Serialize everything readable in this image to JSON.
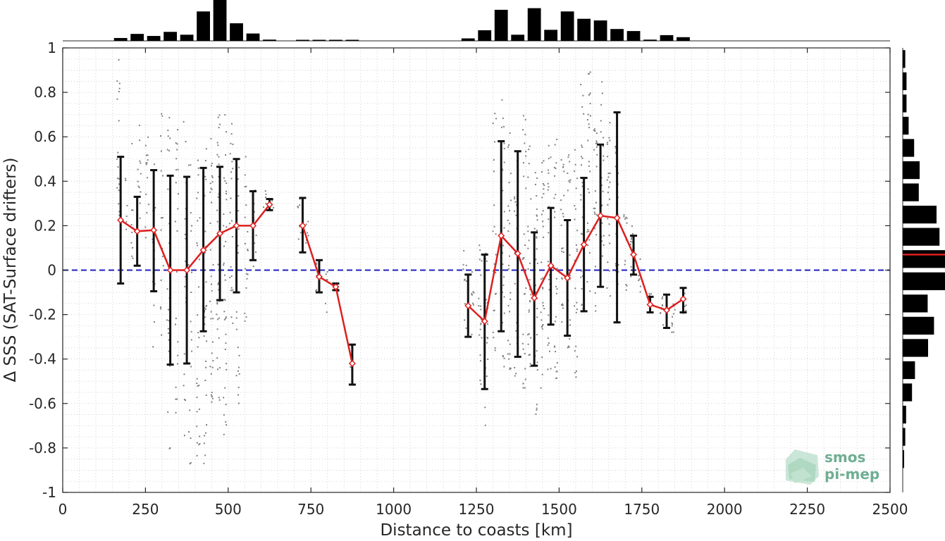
{
  "chart_data": {
    "type": "line",
    "xlabel": "Distance to coasts [km]",
    "ylabel": "Δ SSS (SAT-Surface drifters)",
    "xlim": [
      0,
      2500
    ],
    "ylim": [
      -1,
      1
    ],
    "xticks": [
      0,
      250,
      500,
      750,
      1000,
      1250,
      1500,
      1750,
      2000,
      2250,
      2500
    ],
    "yticks": [
      -1,
      -0.8,
      -0.6,
      -0.4,
      -0.2,
      0,
      0.2,
      0.4,
      0.6,
      0.8,
      1
    ],
    "xtick_labels": [
      "0",
      "250",
      "500",
      "750",
      "1000",
      "1250",
      "1500",
      "1750",
      "2000",
      "2250",
      "2500"
    ],
    "ytick_labels": [
      "-1",
      "-0.8",
      "-0.6",
      "-0.4",
      "-0.2",
      "0",
      "0.2",
      "0.4",
      "0.6",
      "0.8",
      "1"
    ],
    "grid": true,
    "reference_line": {
      "y": 0,
      "style": "dashed",
      "color": "#1f1fbf"
    },
    "series": [
      {
        "style": "mean-with-std-errorbars",
        "line_color": "#dd1f1f",
        "errorbar_color": "#111111",
        "segments": [
          [
            {
              "x": 175,
              "y": 0.225,
              "lo": -0.06,
              "hi": 0.51
            },
            {
              "x": 225,
              "y": 0.175,
              "lo": 0.02,
              "hi": 0.33
            },
            {
              "x": 275,
              "y": 0.18,
              "lo": -0.095,
              "hi": 0.45
            },
            {
              "x": 325,
              "y": 0.0,
              "lo": -0.425,
              "hi": 0.425
            },
            {
              "x": 375,
              "y": 0.0,
              "lo": -0.42,
              "hi": 0.42
            },
            {
              "x": 425,
              "y": 0.09,
              "lo": -0.275,
              "hi": 0.46
            },
            {
              "x": 475,
              "y": 0.165,
              "lo": -0.135,
              "hi": 0.465
            },
            {
              "x": 525,
              "y": 0.2,
              "lo": -0.1,
              "hi": 0.5
            },
            {
              "x": 575,
              "y": 0.2,
              "lo": 0.045,
              "hi": 0.355
            },
            {
              "x": 625,
              "y": 0.295,
              "lo": 0.27,
              "hi": 0.32
            }
          ],
          [
            {
              "x": 725,
              "y": 0.2,
              "lo": 0.08,
              "hi": 0.325
            },
            {
              "x": 775,
              "y": -0.03,
              "lo": -0.1,
              "hi": 0.045
            },
            {
              "x": 825,
              "y": -0.075,
              "lo": -0.09,
              "hi": -0.06
            },
            {
              "x": 875,
              "y": -0.42,
              "lo": -0.515,
              "hi": -0.335
            }
          ],
          [
            {
              "x": 1225,
              "y": -0.16,
              "lo": -0.3,
              "hi": -0.02
            },
            {
              "x": 1275,
              "y": -0.23,
              "lo": -0.535,
              "hi": 0.07
            },
            {
              "x": 1325,
              "y": 0.155,
              "lo": -0.275,
              "hi": 0.58
            },
            {
              "x": 1375,
              "y": 0.075,
              "lo": -0.39,
              "hi": 0.535
            },
            {
              "x": 1425,
              "y": -0.125,
              "lo": -0.43,
              "hi": 0.17
            },
            {
              "x": 1475,
              "y": 0.02,
              "lo": -0.245,
              "hi": 0.28
            },
            {
              "x": 1525,
              "y": -0.035,
              "lo": -0.295,
              "hi": 0.225
            },
            {
              "x": 1575,
              "y": 0.115,
              "lo": -0.185,
              "hi": 0.415
            },
            {
              "x": 1625,
              "y": 0.245,
              "lo": -0.075,
              "hi": 0.565
            },
            {
              "x": 1675,
              "y": 0.235,
              "lo": -0.235,
              "hi": 0.71
            },
            {
              "x": 1725,
              "y": 0.07,
              "lo": -0.02,
              "hi": 0.155
            },
            {
              "x": 1775,
              "y": -0.155,
              "lo": -0.19,
              "hi": -0.12
            },
            {
              "x": 1825,
              "y": -0.18,
              "lo": -0.26,
              "hi": -0.11
            },
            {
              "x": 1875,
              "y": -0.13,
              "lo": -0.19,
              "hi": -0.08
            }
          ]
        ]
      }
    ],
    "scatter_clusters": [
      {
        "x": 168,
        "ymin": 0.1,
        "ymax": 0.95,
        "n": 18
      },
      {
        "x": 190,
        "ymin": 0.15,
        "ymax": 0.45,
        "n": 6
      },
      {
        "x": 210,
        "ymin": 0.05,
        "ymax": 0.6,
        "n": 10
      },
      {
        "x": 232,
        "ymin": 0.05,
        "ymax": 0.68,
        "n": 12
      },
      {
        "x": 255,
        "ymin": 0.0,
        "ymax": 0.6,
        "n": 14
      },
      {
        "x": 275,
        "ymin": -0.35,
        "ymax": 0.55,
        "n": 18
      },
      {
        "x": 300,
        "ymin": -0.3,
        "ymax": 0.72,
        "n": 16
      },
      {
        "x": 320,
        "ymin": -0.85,
        "ymax": 0.7,
        "n": 22
      },
      {
        "x": 345,
        "ymin": -0.7,
        "ymax": 0.7,
        "n": 22
      },
      {
        "x": 370,
        "ymin": -0.75,
        "ymax": 0.68,
        "n": 20
      },
      {
        "x": 385,
        "ymin": -0.95,
        "ymax": 0.5,
        "n": 18
      },
      {
        "x": 410,
        "ymin": -0.9,
        "ymax": 0.55,
        "n": 28
      },
      {
        "x": 430,
        "ymin": -0.88,
        "ymax": 0.6,
        "n": 34
      },
      {
        "x": 450,
        "ymin": -0.6,
        "ymax": 0.62,
        "n": 34
      },
      {
        "x": 470,
        "ymin": -0.6,
        "ymax": 0.7,
        "n": 36
      },
      {
        "x": 490,
        "ymin": -0.78,
        "ymax": 0.75,
        "n": 36
      },
      {
        "x": 510,
        "ymin": -0.25,
        "ymax": 0.72,
        "n": 24
      },
      {
        "x": 530,
        "ymin": -0.6,
        "ymax": 0.6,
        "n": 24
      },
      {
        "x": 555,
        "ymin": -0.25,
        "ymax": 0.6,
        "n": 18
      },
      {
        "x": 580,
        "ymin": 0.0,
        "ymax": 0.4,
        "n": 10
      },
      {
        "x": 610,
        "ymin": 0.27,
        "ymax": 0.36,
        "n": 5
      },
      {
        "x": 635,
        "ymin": 0.28,
        "ymax": 0.33,
        "n": 3
      },
      {
        "x": 715,
        "ymin": 0.1,
        "ymax": 0.34,
        "n": 8
      },
      {
        "x": 740,
        "ymin": 0.1,
        "ymax": 0.3,
        "n": 6
      },
      {
        "x": 770,
        "ymin": -0.1,
        "ymax": 0.05,
        "n": 6
      },
      {
        "x": 795,
        "ymin": -0.2,
        "ymax": 0.0,
        "n": 6
      },
      {
        "x": 830,
        "ymin": -0.1,
        "ymax": -0.05,
        "n": 4
      },
      {
        "x": 870,
        "ymin": -0.5,
        "ymax": -0.33,
        "n": 5
      },
      {
        "x": 1215,
        "ymin": -0.3,
        "ymax": 0.1,
        "n": 10
      },
      {
        "x": 1240,
        "ymin": -0.3,
        "ymax": 0.0,
        "n": 8
      },
      {
        "x": 1262,
        "ymin": -0.55,
        "ymax": 0.15,
        "n": 20
      },
      {
        "x": 1280,
        "ymin": -0.7,
        "ymax": 0.2,
        "n": 22
      },
      {
        "x": 1305,
        "ymin": -0.45,
        "ymax": 0.75,
        "n": 22
      },
      {
        "x": 1330,
        "ymin": -0.5,
        "ymax": 0.82,
        "n": 30
      },
      {
        "x": 1350,
        "ymin": -0.45,
        "ymax": 0.65,
        "n": 26
      },
      {
        "x": 1370,
        "ymin": -0.5,
        "ymax": 0.55,
        "n": 24
      },
      {
        "x": 1395,
        "ymin": -0.55,
        "ymax": 0.7,
        "n": 30
      },
      {
        "x": 1410,
        "ymin": -0.5,
        "ymax": 0.6,
        "n": 26
      },
      {
        "x": 1430,
        "ymin": -0.65,
        "ymax": 0.55,
        "n": 30
      },
      {
        "x": 1450,
        "ymin": -0.55,
        "ymax": 0.6,
        "n": 30
      },
      {
        "x": 1470,
        "ymin": -0.45,
        "ymax": 0.65,
        "n": 28
      },
      {
        "x": 1490,
        "ymin": -0.5,
        "ymax": 0.6,
        "n": 26
      },
      {
        "x": 1510,
        "ymin": -0.25,
        "ymax": 0.5,
        "n": 22
      },
      {
        "x": 1530,
        "ymin": -0.35,
        "ymax": 0.55,
        "n": 24
      },
      {
        "x": 1550,
        "ymin": -0.5,
        "ymax": 0.6,
        "n": 24
      },
      {
        "x": 1570,
        "ymin": -0.2,
        "ymax": 0.85,
        "n": 26
      },
      {
        "x": 1590,
        "ymin": -0.15,
        "ymax": 0.95,
        "n": 28
      },
      {
        "x": 1610,
        "ymin": -0.2,
        "ymax": 0.75,
        "n": 24
      },
      {
        "x": 1630,
        "ymin": -0.1,
        "ymax": 0.85,
        "n": 26
      },
      {
        "x": 1650,
        "ymin": -0.2,
        "ymax": 0.7,
        "n": 24
      },
      {
        "x": 1675,
        "ymin": -0.1,
        "ymax": 0.95,
        "n": 22
      },
      {
        "x": 1700,
        "ymin": -0.1,
        "ymax": 0.3,
        "n": 12
      },
      {
        "x": 1720,
        "ymin": -0.05,
        "ymax": 0.2,
        "n": 10
      },
      {
        "x": 1745,
        "ymin": -0.1,
        "ymax": 0.05,
        "n": 6
      },
      {
        "x": 1775,
        "ymin": -0.2,
        "ymax": -0.1,
        "n": 8
      },
      {
        "x": 1810,
        "ymin": -0.28,
        "ymax": -0.12,
        "n": 10
      },
      {
        "x": 1845,
        "ymin": -0.28,
        "ymax": -0.15,
        "n": 10
      },
      {
        "x": 1880,
        "ymin": -0.2,
        "ymax": -0.1,
        "n": 6
      }
    ],
    "top_histogram": {
      "bin_centers": [
        175,
        225,
        275,
        325,
        375,
        425,
        475,
        525,
        575,
        625,
        675,
        725,
        775,
        825,
        875,
        1225,
        1275,
        1325,
        1375,
        1425,
        1475,
        1525,
        1575,
        1625,
        1675,
        1725,
        1775,
        1825,
        1875
      ],
      "relative_counts": [
        0.07,
        0.17,
        0.12,
        0.22,
        0.15,
        0.72,
        1.0,
        0.43,
        0.18,
        0.03,
        0.0,
        0.02,
        0.02,
        0.02,
        0.02,
        0.06,
        0.26,
        0.76,
        0.15,
        0.8,
        0.27,
        0.72,
        0.54,
        0.5,
        0.29,
        0.24,
        0.03,
        0.14,
        0.09
      ]
    },
    "right_histogram": {
      "bin_centers": [
        0.95,
        0.85,
        0.75,
        0.65,
        0.55,
        0.45,
        0.35,
        0.25,
        0.15,
        0.05,
        -0.05,
        -0.15,
        -0.25,
        -0.35,
        -0.45,
        -0.55,
        -0.65,
        -0.75,
        -0.85
      ],
      "relative_counts": [
        0.06,
        0.09,
        0.09,
        0.14,
        0.27,
        0.4,
        0.38,
        0.8,
        0.87,
        1.0,
        1.0,
        0.59,
        0.74,
        0.6,
        0.29,
        0.22,
        0.08,
        0.06,
        0.03
      ],
      "mean_marker": {
        "y": 0.07,
        "color": "#dd1f1f"
      }
    }
  },
  "logo": {
    "line1": "smos",
    "line2": "pi-mep"
  },
  "colors": {
    "mean_line": "#dd1f1f",
    "errorbar": "#111111",
    "scatter": "#808080",
    "zero_line": "#1f1fbf",
    "histogram": "#000000",
    "grid": "#c9c9c9",
    "logo": "#6fae92"
  }
}
